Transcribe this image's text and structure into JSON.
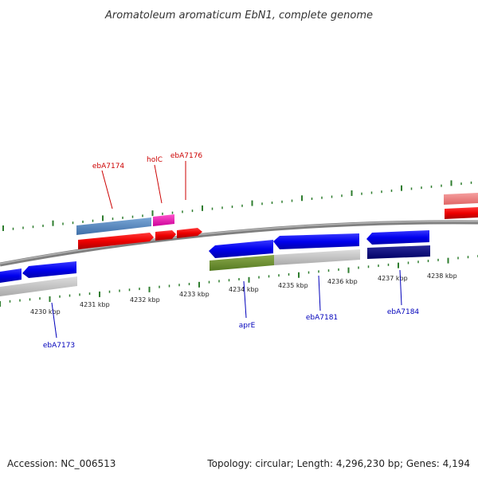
{
  "title": "Aromatoleum aromaticum EbN1, complete genome",
  "footer": {
    "accession": "Accession: NC_006513",
    "summary": "Topology: circular; Length: 4,296,230 bp; Genes: 4,194"
  },
  "colors": {
    "label_top": "#cc0000",
    "label_bottom": "#0000bb",
    "tick": "#2e7d2e",
    "backbone": "#7f7f7f"
  },
  "kbp_labels": [
    "4230 kbp",
    "4231 kbp",
    "4232 kbp",
    "4233 kbp",
    "4234 kbp",
    "4235 kbp",
    "4236 kbp",
    "4237 kbp",
    "4238 kbp"
  ],
  "gene_labels_top": [
    "ebA7174",
    "holC",
    "ebA7176"
  ],
  "gene_labels_bottom": [
    "ebA7173",
    "aprE",
    "ebA7181",
    "ebA7184"
  ]
}
